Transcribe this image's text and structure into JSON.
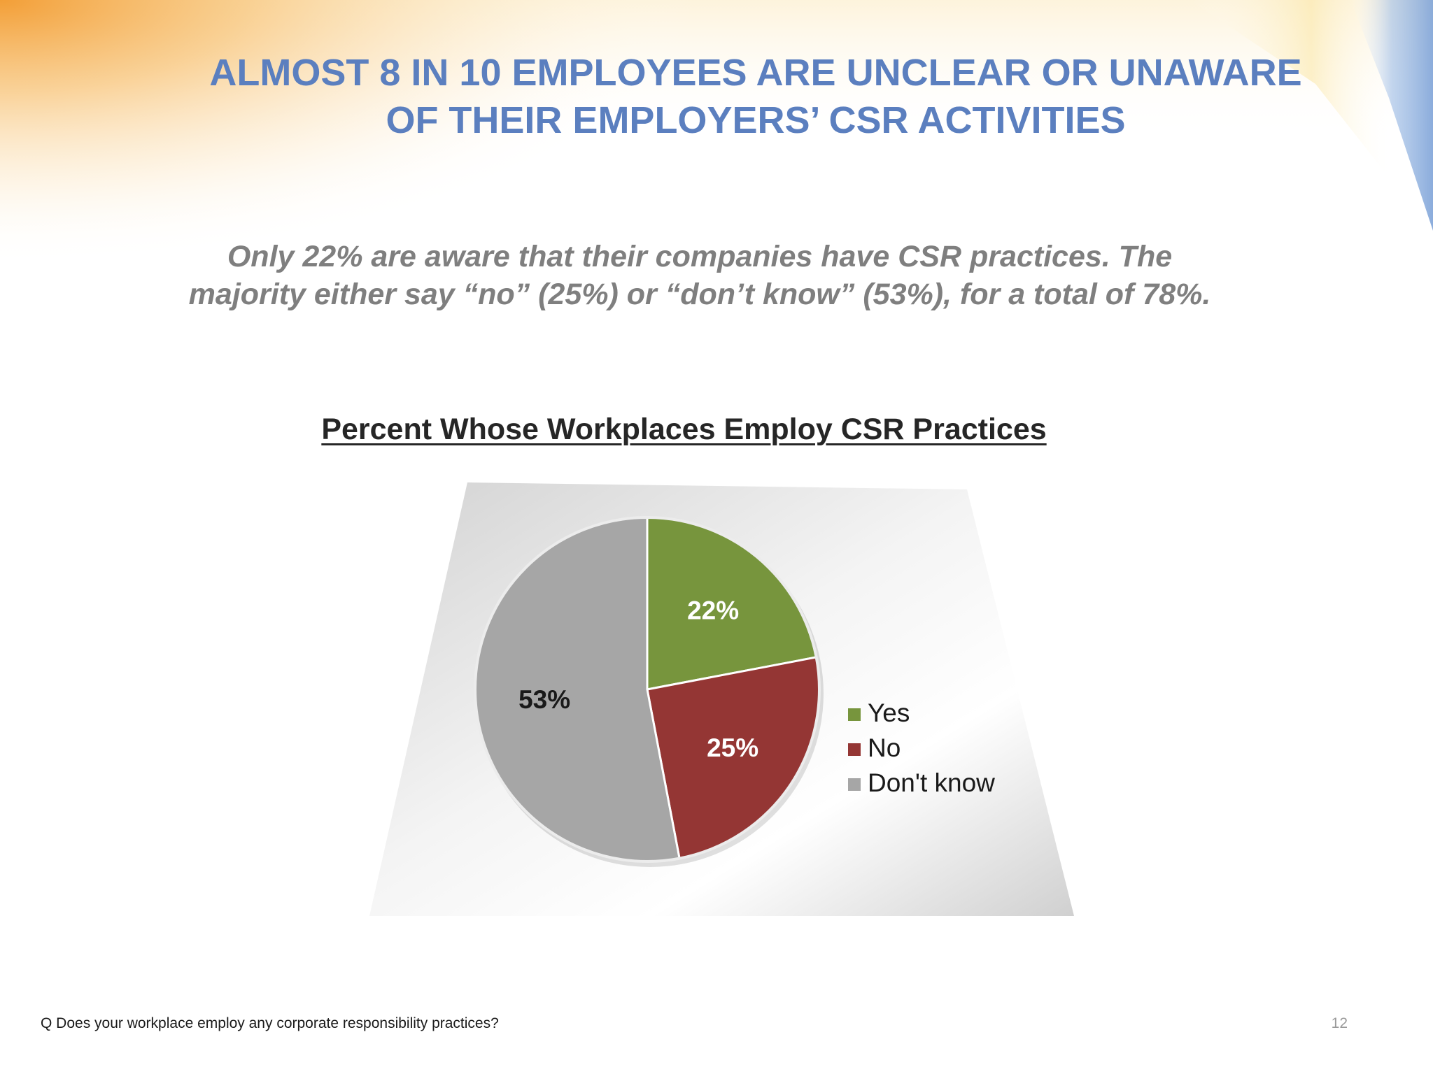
{
  "slide": {
    "headline_line1": "ALMOST 8 IN 10 EMPLOYEES ARE UNCLEAR OR UNAWARE",
    "headline_line2": "OF THEIR EMPLOYERS’ CSR ACTIVITIES",
    "subtext_line1": "Only 22% are aware that their companies have CSR practices.  The",
    "subtext_line2": "majority either say “no” (25%) or “don’t know” (53%), for a total of 78%.",
    "footnote": "Q Does your workplace employ any corporate responsibility practices?",
    "page_number": "12",
    "colors": {
      "headline": "#5b7fbf",
      "subtext": "#7f7f7f",
      "accent_orange": "#f5a03a",
      "accent_blue": "#8fb3e0"
    }
  },
  "chart_data": {
    "type": "pie",
    "title": "Percent Whose Workplaces Employ CSR Practices",
    "categories": [
      "Yes",
      "No",
      "Don't know"
    ],
    "values": [
      22,
      25,
      53
    ],
    "data_labels": [
      "22%",
      "25%",
      "53%"
    ],
    "colors": [
      "#77953d",
      "#943634",
      "#a6a6a6"
    ],
    "legend_position": "right",
    "start_angle": "12 o'clock",
    "direction": "clockwise"
  }
}
